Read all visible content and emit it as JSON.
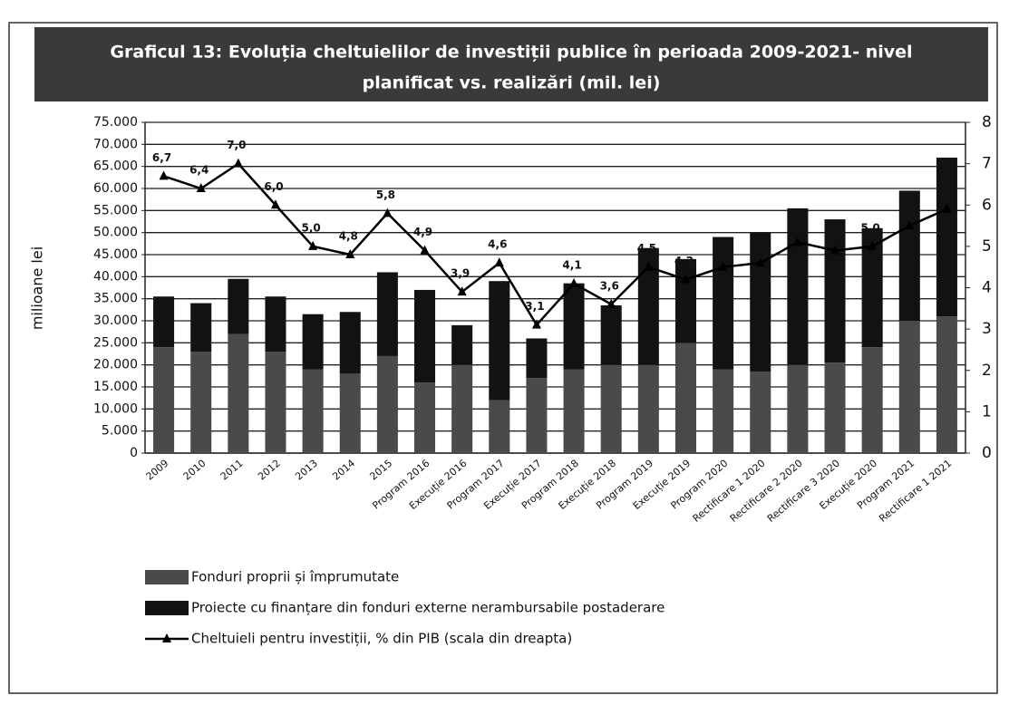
{
  "chart_data": {
    "type": "bar",
    "title": "Graficul 13:  Evoluția  cheltuielilor de investiții publice în perioada 2009-2021- nivel planificat vs. realizări (mil. lei)",
    "ylabel": "milioane lei",
    "categories": [
      "2009",
      "2010",
      "2011",
      "2012",
      "2013",
      "2014",
      "2015",
      "Program 2016",
      "Execuție 2016",
      "Program 2017",
      "Execuție 2017",
      "Program 2018",
      "Execuție 2018",
      "Program 2019",
      "Execuție 2019",
      "Program 2020",
      "Rectificare 1 2020",
      "Rectificare 2 2020",
      "Rectificare 3 2020",
      "Execuție 2020",
      "Program 2021",
      "Rectificare 1 2021"
    ],
    "series": [
      {
        "name": "Fonduri proprii și împrumutate",
        "color": "#4a4a4a",
        "values": [
          24000,
          23000,
          27000,
          23000,
          19000,
          18000,
          22000,
          16000,
          20000,
          12000,
          17000,
          19000,
          20000,
          20000,
          25000,
          19000,
          18500,
          20000,
          20500,
          24000,
          30000,
          31000
        ]
      },
      {
        "name": "Proiecte cu finanțare din fonduri externe nerambursabile postaderare",
        "color": "#121212",
        "values": [
          11500,
          11000,
          12500,
          12500,
          12500,
          14000,
          19000,
          21000,
          9000,
          27000,
          9000,
          19500,
          13500,
          26500,
          19000,
          30000,
          31500,
          35500,
          32500,
          27000,
          29500,
          36000
        ]
      },
      {
        "name": "Cheltuieli pentru investiții, % din PIB (scala din dreapta)",
        "color": "#000000",
        "type": "line",
        "axis": "y2",
        "values": [
          6.7,
          6.4,
          7.0,
          6.0,
          5.0,
          4.8,
          5.8,
          4.9,
          3.9,
          4.6,
          3.1,
          4.1,
          3.6,
          4.5,
          4.2,
          4.5,
          4.6,
          5.1,
          4.9,
          5.0,
          5.5,
          5.9
        ],
        "value_labels": [
          "6,7",
          "6,4",
          "7,0",
          "6,0",
          "5,0",
          "4,8",
          "5,8",
          "4,9",
          "3,9",
          "4,6",
          "3,1",
          "4,1",
          "3,6",
          "4,5",
          "4,2",
          null,
          null,
          null,
          null,
          "5,0",
          null,
          null
        ]
      }
    ],
    "ylim": [
      0,
      75000
    ],
    "yticks": [
      0,
      {
        "value": 5000,
        "label": "5.000"
      },
      {
        "value": 10000,
        "label": "10.000"
      },
      {
        "value": 15000,
        "label": "15.000"
      },
      {
        "value": 20000,
        "label": "20.000"
      },
      {
        "value": 25000,
        "label": "25.000"
      },
      {
        "value": 30000,
        "label": "30.000"
      },
      {
        "value": 35000,
        "label": "35.000"
      },
      {
        "value": 40000,
        "label": "40.000"
      },
      {
        "value": 45000,
        "label": "45.000"
      },
      {
        "value": 50000,
        "label": "50.000"
      },
      {
        "value": 55000,
        "label": "55.000"
      },
      {
        "value": 60000,
        "label": "60.000"
      },
      {
        "value": 65000,
        "label": "65.000"
      },
      {
        "value": 70000,
        "label": "70.000"
      },
      {
        "value": 75000,
        "label": "75.000"
      }
    ],
    "y2lim": [
      0,
      8
    ],
    "y2ticks": [
      0,
      1,
      2,
      3,
      4,
      5,
      6,
      7,
      8
    ],
    "grid": true,
    "stacked": true,
    "legend": "bottom"
  }
}
